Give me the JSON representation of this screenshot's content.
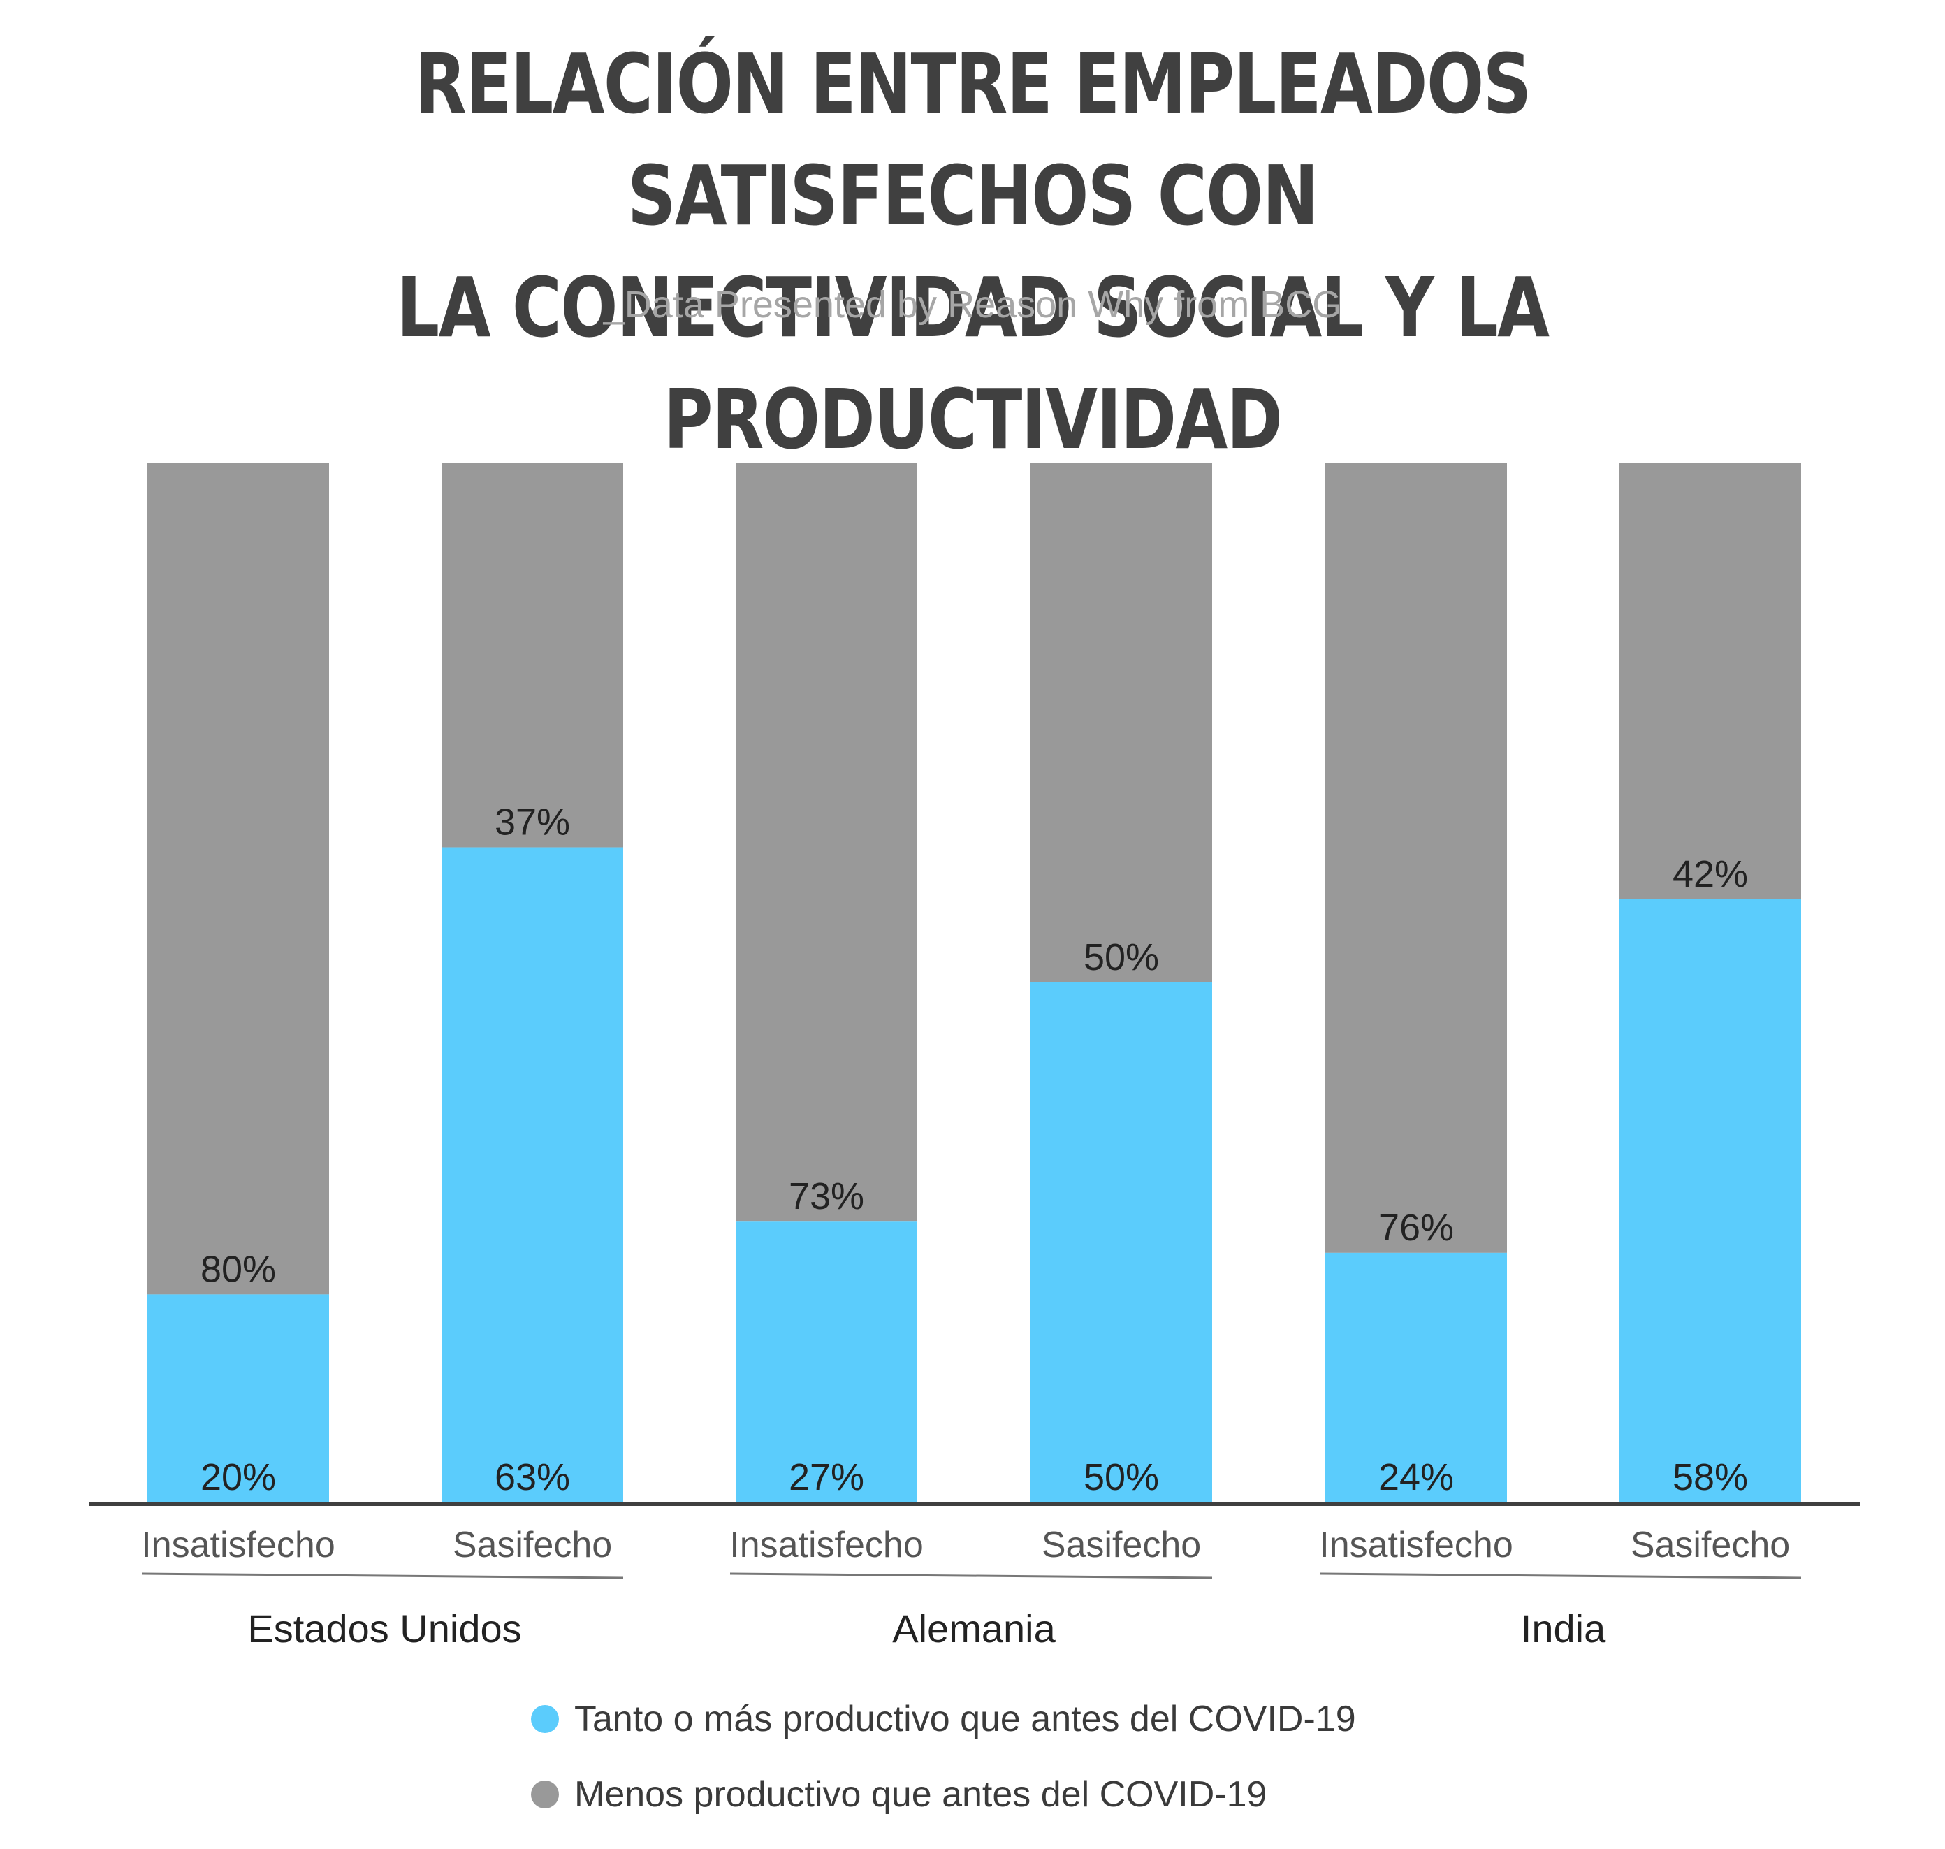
{
  "title_line1": "RELACIÓN ENTRE EMPLEADOS SATISFECHOS CON",
  "title_line2": "LA CONECTIVIDAD SOCIAL Y LA PRODUCTIVIDAD",
  "subtitle": "_Data Presented by Reason Why from BCG",
  "colors": {
    "productive": "#5bccfc",
    "less_productive": "#999999",
    "axis": "#404040",
    "text": "#222222"
  },
  "chart_data": {
    "type": "bar",
    "stacked": true,
    "ylim": [
      0,
      100
    ],
    "unit": "%",
    "grid": false,
    "legend_position": "bottom",
    "categories": [
      "Insatisfecho",
      "Sasifecho",
      "Insatisfecho",
      "Sasifecho",
      "Insatisfecho",
      "Sasifecho"
    ],
    "groups": [
      {
        "label": "Estados Unidos",
        "category_indices": [
          0,
          1
        ]
      },
      {
        "label": "Alemania",
        "category_indices": [
          2,
          3
        ]
      },
      {
        "label": "India",
        "category_indices": [
          4,
          5
        ]
      }
    ],
    "series": [
      {
        "name": "Tanto o más productivo que antes del COVID-19",
        "color": "#5bccfc",
        "values": [
          20,
          63,
          27,
          50,
          24,
          58
        ]
      },
      {
        "name": "Menos productivo que antes del COVID-19",
        "color": "#999999",
        "values": [
          80,
          37,
          73,
          50,
          76,
          42
        ]
      }
    ]
  }
}
